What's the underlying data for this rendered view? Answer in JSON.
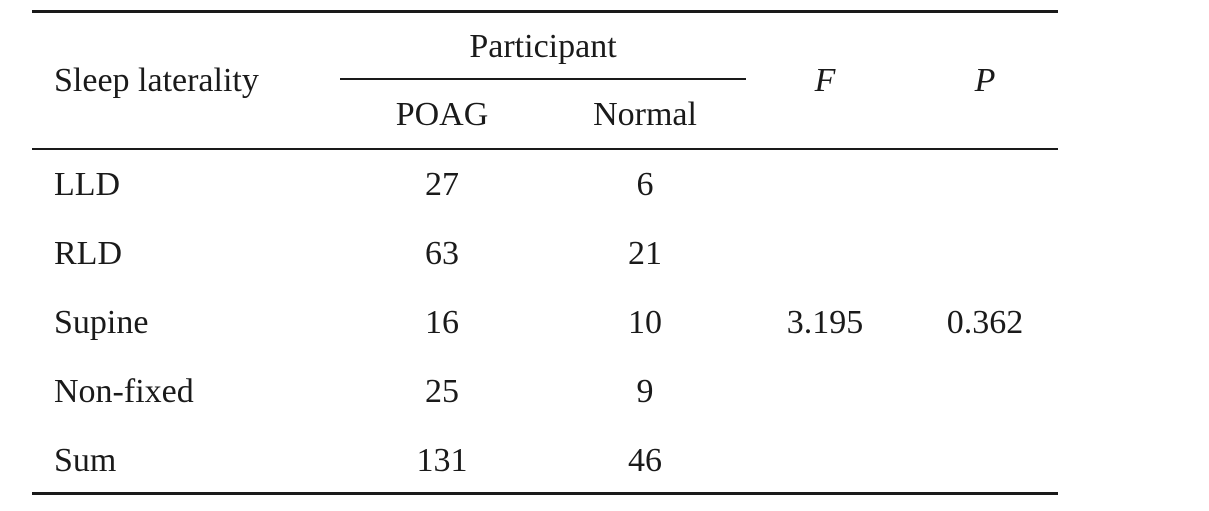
{
  "table": {
    "header": {
      "row_label": "Sleep laterality",
      "group_label": "Participant",
      "subcolumns": [
        "POAG",
        "Normal"
      ],
      "stat_f": "F",
      "stat_p": "P"
    },
    "rows": [
      {
        "label": "LLD",
        "poag": "27",
        "normal": "6"
      },
      {
        "label": "RLD",
        "poag": "63",
        "normal": "21"
      },
      {
        "label": "Supine",
        "poag": "16",
        "normal": "10"
      },
      {
        "label": "Non-fixed",
        "poag": "25",
        "normal": "9"
      },
      {
        "label": "Sum",
        "poag": "131",
        "normal": "46"
      }
    ],
    "stats": {
      "f_value": "3.195",
      "p_value": "0.362"
    }
  }
}
